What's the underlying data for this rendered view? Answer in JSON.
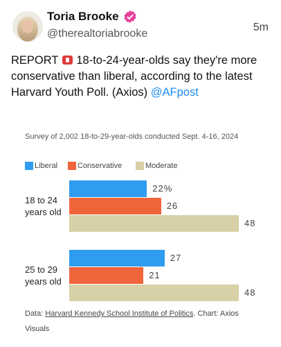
{
  "post": {
    "name": "Toria Brooke",
    "handle": "@therealtoriabrooke",
    "time": "5m",
    "text_lead": "REPORT",
    "text_body": "18-to-24-year-olds say they're more conservative than liberal, according to the latest Harvard Youth Poll. (Axios)",
    "mention": "@AFpost"
  },
  "chart_data": {
    "type": "bar",
    "orientation": "horizontal",
    "subtitle": "Survey of 2,002 18-to-29-year-olds conducted Sept. 4-16, 2024",
    "categories": [
      "18 to 24 years old",
      "25 to 29 years old"
    ],
    "series": [
      {
        "name": "Liberal",
        "color": "#2f9cef",
        "values": [
          22,
          27
        ],
        "value_labels": [
          "22%",
          "27"
        ]
      },
      {
        "name": "Conservative",
        "color": "#f0643c",
        "values": [
          26,
          21
        ]
      },
      {
        "name": "Moderate",
        "color": "#d8d0a6",
        "values": [
          48,
          48
        ]
      }
    ],
    "source_prefix": "Data: ",
    "source_link": "Harvard Kennedy School Institute of Politics",
    "source_suffix": ". Chart: Axios Visuals"
  }
}
